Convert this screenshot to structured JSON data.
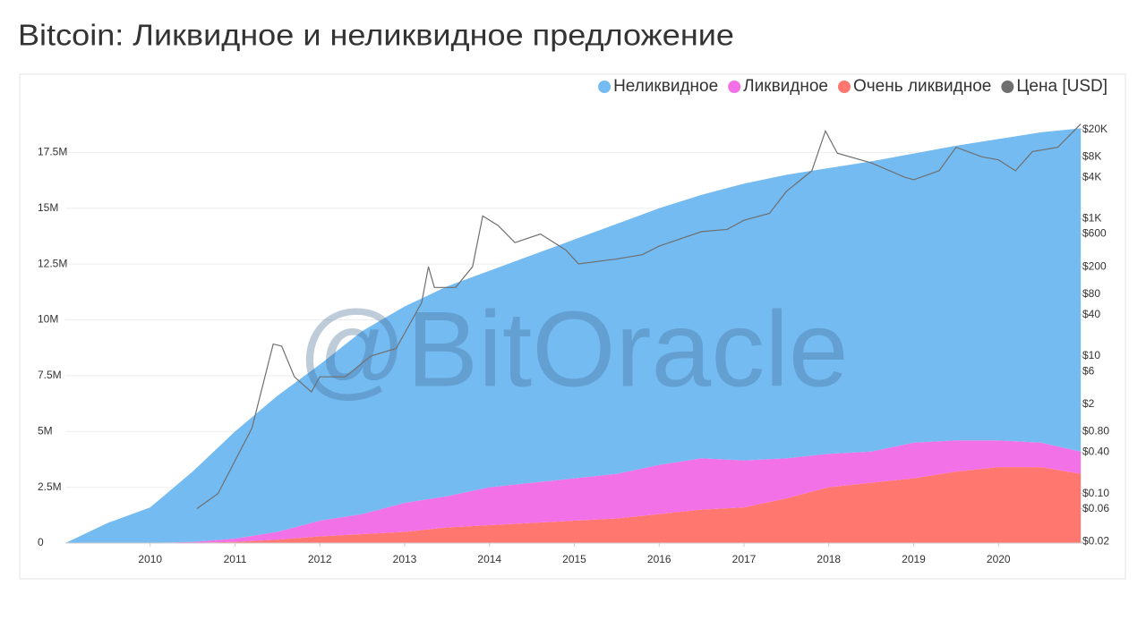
{
  "chart_data": {
    "type": "stacked_area",
    "title": "Bitcoin: Ликвидное и неликвидное предложение",
    "watermark": "@BitOracle",
    "legend": "top-right",
    "grid": true,
    "x": [
      2009,
      2009.5,
      2010,
      2010.5,
      2011,
      2011.5,
      2012,
      2012.5,
      2013,
      2013.5,
      2014,
      2014.5,
      2015,
      2015.5,
      2016,
      2016.5,
      2017,
      2017.5,
      2018,
      2018.5,
      2019,
      2019.5,
      2020,
      2020.5,
      2020.97
    ],
    "xlim": [
      2009,
      2021
    ],
    "xticks": [
      2010,
      2011,
      2012,
      2013,
      2014,
      2015,
      2016,
      2017,
      2018,
      2019,
      2020
    ],
    "ylim": [
      0,
      20000000
    ],
    "yticks": [
      0,
      {
        "value": 2500000,
        "label": "2.5M"
      },
      {
        "value": 5000000,
        "label": "5M"
      },
      {
        "value": 7500000,
        "label": "7.5M"
      },
      {
        "value": 10000000,
        "label": "10M"
      },
      {
        "value": 12500000,
        "label": "12.5M"
      },
      {
        "value": 15000000,
        "label": "15M"
      },
      {
        "value": 17500000,
        "label": "17.5M"
      }
    ],
    "y2lim": [
      0.019,
      60000
    ],
    "y2log": true,
    "y2ticks": [
      {
        "value": 20000,
        "label": "$20K"
      },
      {
        "value": 8000,
        "label": "$8K"
      },
      {
        "value": 4000,
        "label": "$4K"
      },
      {
        "value": 1000,
        "label": "$1K"
      },
      {
        "value": 600,
        "label": "$600"
      },
      {
        "value": 200,
        "label": "$200"
      },
      {
        "value": 80,
        "label": "$80"
      },
      {
        "value": 40,
        "label": "$40"
      },
      {
        "value": 10,
        "label": "$10"
      },
      {
        "value": 6,
        "label": "$6"
      },
      {
        "value": 2,
        "label": "$2"
      },
      {
        "value": 0.8,
        "label": "$0.80"
      },
      {
        "value": 0.4,
        "label": "$0.40"
      },
      {
        "value": 0.1,
        "label": "$0.10"
      },
      {
        "value": 0.06,
        "label": "$0.06"
      },
      {
        "value": 0.02,
        "label": "$0.02"
      }
    ],
    "series": [
      {
        "name": "Неликвидное",
        "color": "#74bbf2",
        "values": [
          0,
          900000,
          1590000,
          3150000,
          4800000,
          6100000,
          7000000,
          8200000,
          8800000,
          9400000,
          9700000,
          10200000,
          10700000,
          11200000,
          11500000,
          11800000,
          12400000,
          12700000,
          12800000,
          13000000,
          12950000,
          13200000,
          13500000,
          13900000,
          14480000
        ]
      },
      {
        "name": "Ликвидное",
        "color": "#f271e6",
        "values": [
          0,
          0,
          10000,
          40000,
          150000,
          350000,
          700000,
          900000,
          1300000,
          1400000,
          1700000,
          1800000,
          1900000,
          2000000,
          2200000,
          2300000,
          2100000,
          1800000,
          1500000,
          1400000,
          1600000,
          1400000,
          1200000,
          1100000,
          1000000
        ]
      },
      {
        "name": "Очень ликвидное",
        "color": "#ff776e",
        "values": [
          0,
          0,
          0,
          10000,
          50000,
          150000,
          300000,
          400000,
          500000,
          700000,
          800000,
          900000,
          1000000,
          1100000,
          1300000,
          1500000,
          1600000,
          2000000,
          2500000,
          2700000,
          2900000,
          3200000,
          3400000,
          3400000,
          3100000
        ]
      },
      {
        "name": "Цена [USD]",
        "color": "#6f6f6f",
        "axis": "y2",
        "type": "line",
        "x": [
          2010.55,
          2010.8,
          2011,
          2011.2,
          2011.45,
          2011.55,
          2011.7,
          2011.9,
          2012,
          2012.3,
          2012.6,
          2012.9,
          2013.2,
          2013.28,
          2013.35,
          2013.6,
          2013.8,
          2013.92,
          2014.1,
          2014.3,
          2014.6,
          2014.9,
          2015.05,
          2015.5,
          2015.8,
          2016,
          2016.5,
          2016.8,
          2017,
          2017.3,
          2017.5,
          2017.8,
          2017.96,
          2018.1,
          2018.5,
          2018.9,
          2019,
          2019.3,
          2019.5,
          2019.8,
          2020,
          2020.2,
          2020.4,
          2020.7,
          2020.97
        ],
        "values": [
          0.06,
          0.1,
          0.3,
          0.9,
          15,
          14,
          5,
          3,
          5,
          5,
          10,
          13,
          60,
          200,
          100,
          100,
          200,
          1100,
          800,
          450,
          600,
          350,
          220,
          260,
          300,
          400,
          650,
          700,
          950,
          1200,
          2500,
          5000,
          19000,
          9000,
          6500,
          4000,
          3700,
          5000,
          11000,
          8000,
          7200,
          5000,
          9500,
          11000,
          24000
        ]
      }
    ]
  }
}
